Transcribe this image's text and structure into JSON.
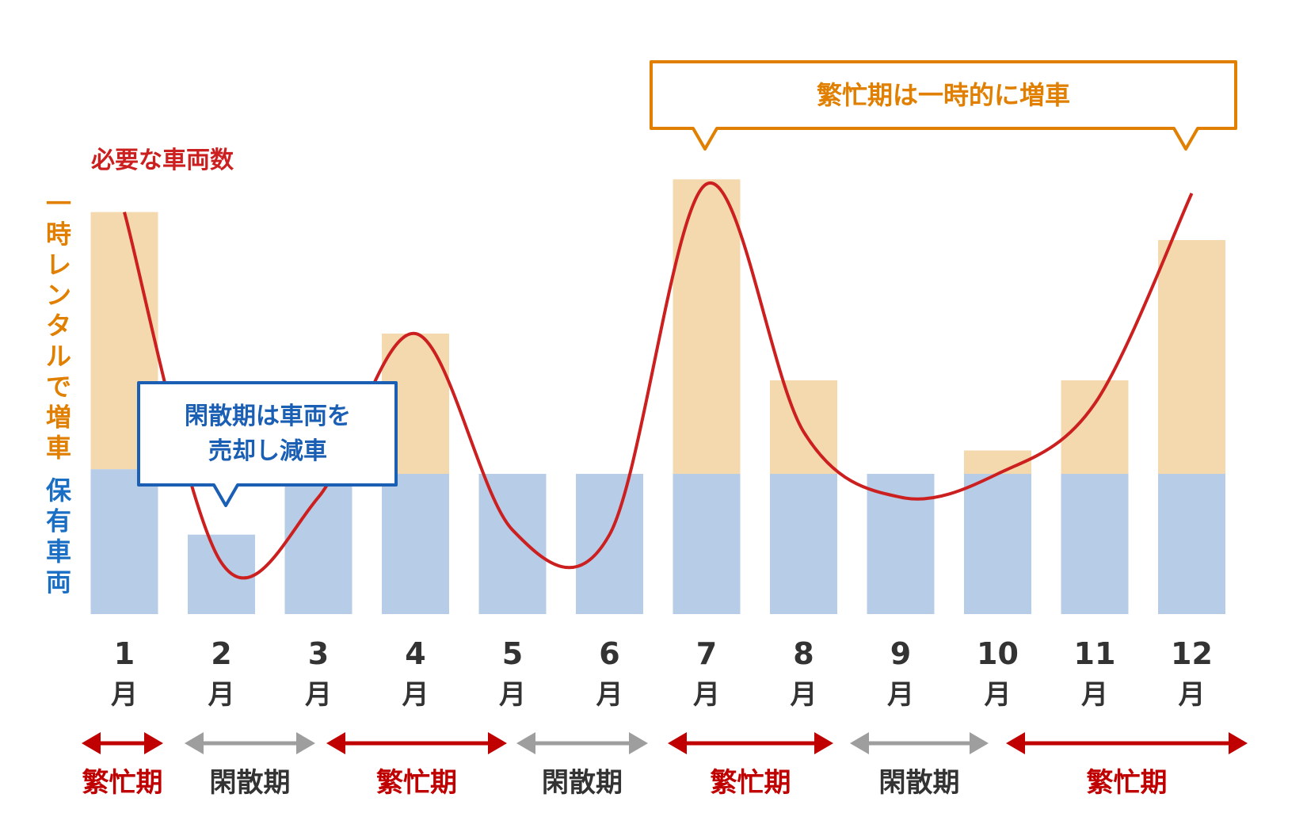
{
  "chart_data": {
    "type": "bar",
    "categories": [
      "1",
      "2",
      "3",
      "4",
      "5",
      "6",
      "7",
      "8",
      "9",
      "10",
      "11",
      "12"
    ],
    "month_suffix": "月",
    "series": [
      {
        "name": "保有車両",
        "values": [
          31,
          17,
          28,
          30,
          30,
          30,
          30,
          30,
          30,
          30,
          30,
          30
        ]
      },
      {
        "name": "一時レンタルで増車",
        "values": [
          55,
          0,
          0,
          30,
          0,
          0,
          63,
          20,
          0,
          5,
          20,
          50
        ]
      }
    ],
    "line": {
      "name": "必要な車両数",
      "values": [
        86,
        11,
        25,
        60,
        18,
        17,
        92,
        39,
        25,
        30,
        45,
        90
      ]
    },
    "ylim": [
      0,
      100
    ],
    "side_labels": {
      "rental": "一時レンタルで増車",
      "owned": "保有車両"
    },
    "callouts": {
      "busy": "繁忙期は一時的に増車",
      "slow_line1": "閑散期は車両を",
      "slow_line2": "売却し減車"
    },
    "periods": [
      {
        "label": "繁忙期",
        "start": 1,
        "end": 1,
        "kind": "busy"
      },
      {
        "label": "閑散期",
        "start": 2,
        "end": 3,
        "kind": "slow"
      },
      {
        "label": "繁忙期",
        "start": 3,
        "end": 5,
        "kind": "busy"
      },
      {
        "label": "閑散期",
        "start": 5,
        "end": 6,
        "kind": "slow"
      },
      {
        "label": "繁忙期",
        "start": 7,
        "end": 8,
        "kind": "busy"
      },
      {
        "label": "閑散期",
        "start": 8,
        "end": 10,
        "kind": "slow"
      },
      {
        "label": "繁忙期",
        "start": 10,
        "end": 12,
        "kind": "busy"
      }
    ],
    "colors": {
      "owned": "#b7cce6",
      "rental": "#f5d9ae",
      "line": "#cc1f1f",
      "busy": "#c00000",
      "slow_arrow": "#9e9e9e",
      "slow_text": "#333333",
      "owned_text": "#1a6fc4",
      "rental_text": "#e07f00",
      "callout_busy": "#e07f00",
      "callout_slow": "#1a5fb4"
    }
  }
}
